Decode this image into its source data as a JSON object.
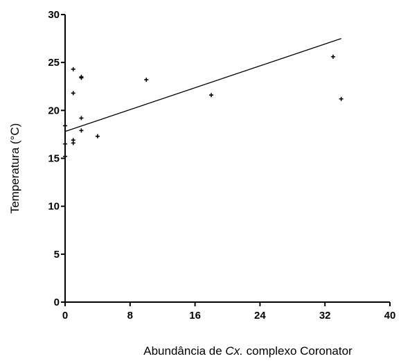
{
  "chart_data": {
    "type": "scatter",
    "title": "",
    "xlabel": {
      "prefix": "Abundância de ",
      "italic": "Cx.",
      "suffix": " complexo Coronator"
    },
    "ylabel": "Temperatura (°C)",
    "xlim": [
      0,
      40
    ],
    "ylim": [
      0,
      30
    ],
    "x_ticks": [
      0,
      8,
      16,
      24,
      32,
      40
    ],
    "y_ticks": [
      0,
      5,
      10,
      15,
      20,
      25,
      30
    ],
    "grid": false,
    "legend": "none",
    "points": [
      {
        "x": 0,
        "y": 18.4
      },
      {
        "x": 0,
        "y": 16.5
      },
      {
        "x": 0,
        "y": 15.2
      },
      {
        "x": 1,
        "y": 24.3
      },
      {
        "x": 1,
        "y": 21.8
      },
      {
        "x": 1,
        "y": 16.9
      },
      {
        "x": 1,
        "y": 16.6
      },
      {
        "x": 2,
        "y": 23.5
      },
      {
        "x": 2,
        "y": 23.4
      },
      {
        "x": 2,
        "y": 19.2
      },
      {
        "x": 2,
        "y": 17.9
      },
      {
        "x": 4,
        "y": 17.3
      },
      {
        "x": 10,
        "y": 23.2
      },
      {
        "x": 18,
        "y": 21.6
      },
      {
        "x": 33,
        "y": 25.6
      },
      {
        "x": 34,
        "y": 21.2
      }
    ],
    "trendline": {
      "x": [
        0,
        34
      ],
      "y": [
        17.8,
        27.5
      ]
    },
    "colors": {
      "ink": "#000000"
    }
  }
}
